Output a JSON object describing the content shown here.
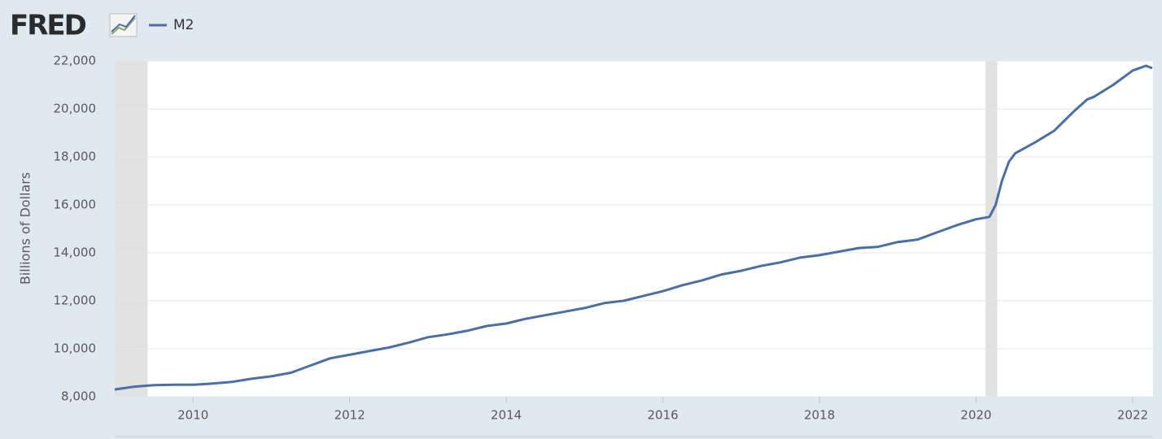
{
  "chart_data": {
    "type": "line",
    "logo": "FRED",
    "y_label": "Billions of Dollars",
    "x": [
      2009.0,
      2009.25,
      2009.5,
      2009.75,
      2010.0,
      2010.25,
      2010.5,
      2010.75,
      2011.0,
      2011.25,
      2011.5,
      2011.75,
      2012.0,
      2012.25,
      2012.5,
      2012.75,
      2013.0,
      2013.25,
      2013.5,
      2013.75,
      2014.0,
      2014.25,
      2014.5,
      2014.75,
      2015.0,
      2015.25,
      2015.5,
      2015.75,
      2016.0,
      2016.25,
      2016.5,
      2016.75,
      2017.0,
      2017.25,
      2017.5,
      2017.75,
      2018.0,
      2018.25,
      2018.5,
      2018.75,
      2019.0,
      2019.25,
      2019.5,
      2019.75,
      2020.0,
      2020.17,
      2020.25,
      2020.33,
      2020.42,
      2020.5,
      2020.75,
      2021.0,
      2021.25,
      2021.42,
      2021.5,
      2021.75,
      2022.0,
      2022.17,
      2022.25
    ],
    "series": [
      {
        "name": "M2",
        "color": "#4a6fa5",
        "values": [
          8300,
          8420,
          8480,
          8500,
          8500,
          8550,
          8620,
          8750,
          8850,
          9000,
          9300,
          9600,
          9750,
          9900,
          10050,
          10250,
          10480,
          10600,
          10750,
          10950,
          11050,
          11250,
          11400,
          11550,
          11700,
          11900,
          12000,
          12200,
          12400,
          12650,
          12850,
          13100,
          13250,
          13450,
          13600,
          13800,
          13900,
          14050,
          14200,
          14250,
          14450,
          14550,
          14850,
          15150,
          15400,
          15500,
          16000,
          17000,
          17800,
          18150,
          18600,
          19100,
          19900,
          20400,
          20500,
          21000,
          21600,
          21800,
          21700
        ]
      }
    ],
    "recessions": [
      [
        2009.0,
        2009.42
      ],
      [
        2020.12,
        2020.27
      ]
    ],
    "xlim": [
      2009.0,
      2022.26
    ],
    "xticks": [
      2010,
      2012,
      2014,
      2016,
      2018,
      2020,
      2022
    ],
    "ylim": [
      8000,
      22000
    ],
    "yticks": [
      {
        "value": 8000,
        "label": "8,000"
      },
      {
        "value": 10000,
        "label": "10,000"
      },
      {
        "value": 12000,
        "label": "12,000"
      },
      {
        "value": 14000,
        "label": "14,000"
      },
      {
        "value": 16000,
        "label": "16,000"
      },
      {
        "value": 18000,
        "label": "18,000"
      },
      {
        "value": 20000,
        "label": "20,000"
      },
      {
        "value": 22000,
        "label": "22,000"
      }
    ],
    "grid": true
  }
}
